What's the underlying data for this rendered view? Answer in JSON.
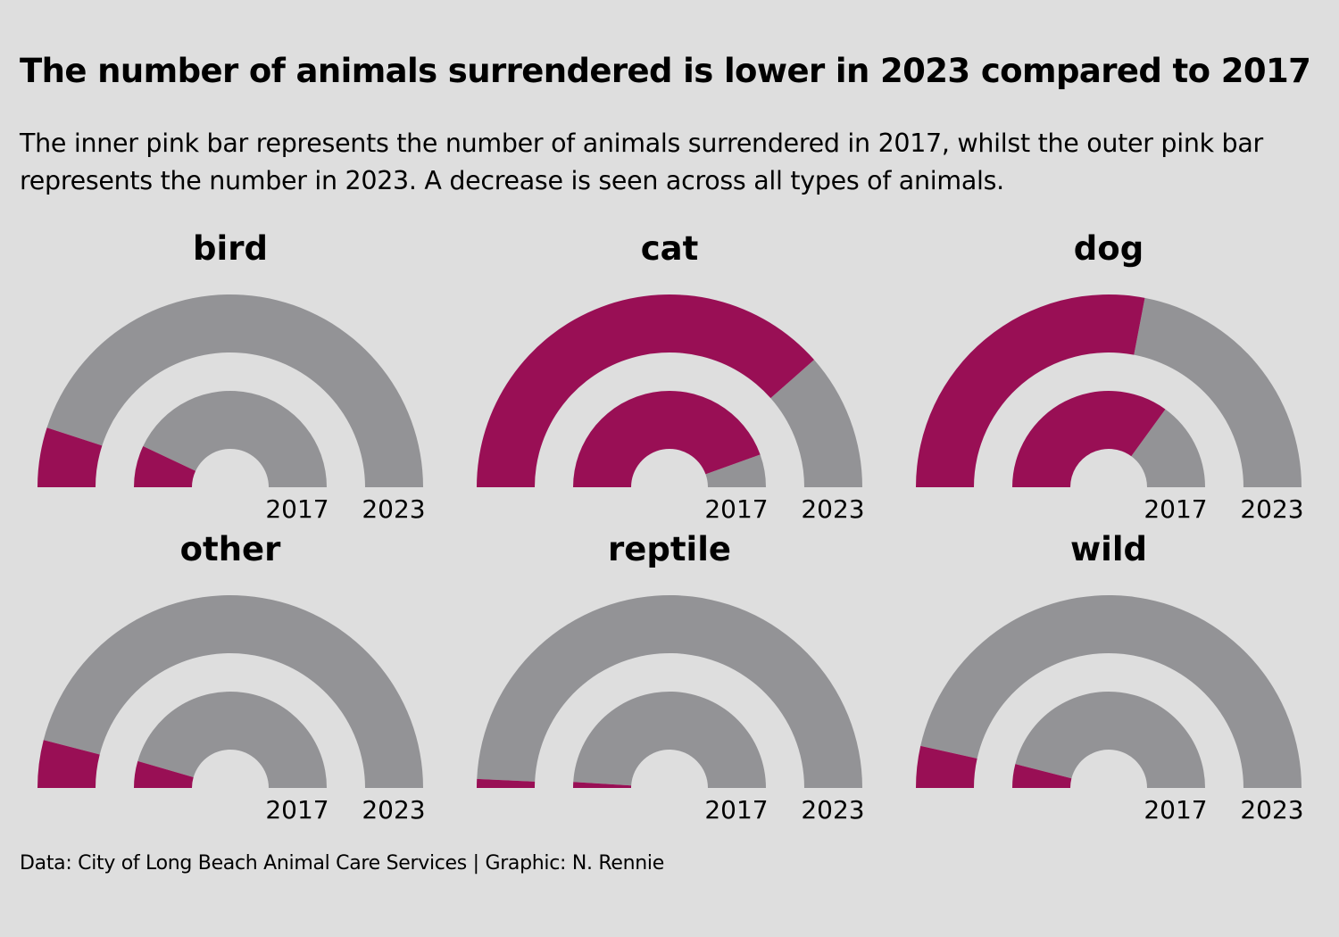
{
  "title": "The number of animals surrendered is lower in 2023 compared to 2017",
  "subtitle": "The inner pink bar represents the number of animals surrendered in 2017, whilst the outer pink bar represents the number in 2023. A decrease is seen across all types of animals.",
  "caption": "Data: City of Long Beach Animal Care Services | Graphic: N. Rennie",
  "colors": {
    "background": "#dedede",
    "highlight": "#990f55",
    "track": "#939396",
    "text": "#000000"
  },
  "chart_data": {
    "type": "radial-bar",
    "title": "The number of animals surrendered is lower in 2023 compared to 2017",
    "value_meaning": "share of semicircle filled (fraction of surrendered animals), read from arc angles",
    "ring_labels": [
      "2017",
      "2023"
    ],
    "ring_order": "inner ring = 2017, outer ring = 2023",
    "scale": [
      0,
      1
    ],
    "facets": [
      {
        "name": "bird",
        "values": {
          "2017": 0.14,
          "2023": 0.1
        }
      },
      {
        "name": "cat",
        "values": {
          "2017": 0.89,
          "2023": 0.77
        }
      },
      {
        "name": "dog",
        "values": {
          "2017": 0.7,
          "2023": 0.56
        }
      },
      {
        "name": "other",
        "values": {
          "2017": 0.09,
          "2023": 0.08
        }
      },
      {
        "name": "reptile",
        "values": {
          "2017": 0.02,
          "2023": 0.015
        }
      },
      {
        "name": "wild",
        "values": {
          "2017": 0.08,
          "2023": 0.07
        }
      }
    ]
  }
}
